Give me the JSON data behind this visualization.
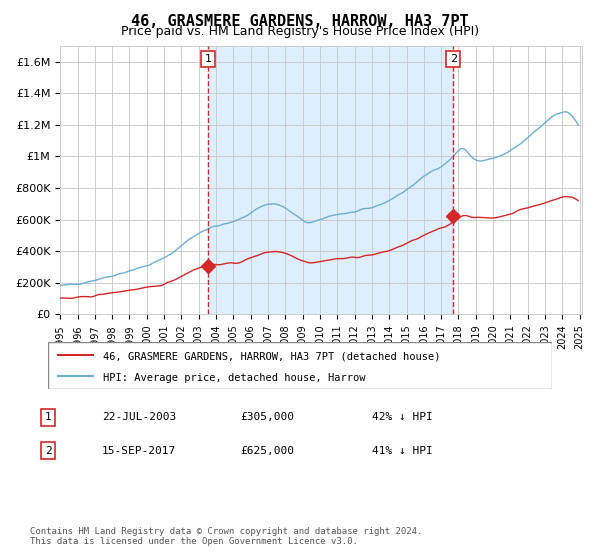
{
  "title": "46, GRASMERE GARDENS, HARROW, HA3 7PT",
  "subtitle": "Price paid vs. HM Land Registry's House Price Index (HPI)",
  "hpi_label": "HPI: Average price, detached house, Harrow",
  "property_label": "46, GRASMERE GARDENS, HARROW, HA3 7PT (detached house)",
  "transactions": [
    {
      "date": "2003-07-22",
      "price": 305000,
      "label": "1"
    },
    {
      "date": "2017-09-15",
      "price": 625000,
      "label": "2"
    }
  ],
  "transaction_table": [
    {
      "num": "1",
      "date": "22-JUL-2003",
      "price": "£305,000",
      "note": "42% ↓ HPI"
    },
    {
      "num": "2",
      "date": "15-SEP-2017",
      "price": "£625,000",
      "note": "41% ↓ HPI"
    }
  ],
  "hpi_color": "#6baed6",
  "property_color": "#d62728",
  "marker_color": "#d62728",
  "dashed_line_color": "#d62728",
  "bg_color": "#ddeeff",
  "ylim_max": 1700000,
  "ylabel_ticks": [
    0,
    200000,
    400000,
    600000,
    800000,
    1000000,
    1200000,
    1400000,
    1600000
  ],
  "ylabel_labels": [
    "£0",
    "£200K",
    "£400K",
    "£600K",
    "£800K",
    "£1M",
    "£1.2M",
    "£1.4M",
    "£1.6M"
  ],
  "start_year": 1995,
  "end_year": 2025,
  "footnote": "Contains HM Land Registry data © Crown copyright and database right 2024.\nThis data is licensed under the Open Government Licence v3.0."
}
